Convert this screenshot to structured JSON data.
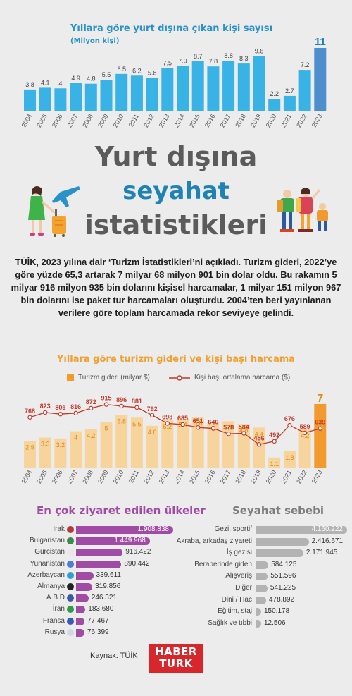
{
  "chart_data": [
    {
      "type": "bar",
      "title": "Yıllara göre yurt dışına çıkan kişi sayısı",
      "subtitle": "(Milyon kişi)",
      "categories": [
        "2004",
        "2005",
        "2006",
        "2007",
        "2008",
        "2009",
        "2010",
        "2011",
        "2012",
        "2013",
        "2014",
        "2015",
        "2016",
        "2017",
        "2018",
        "2019",
        "2020",
        "2021",
        "2022",
        "2023"
      ],
      "values": [
        3.8,
        4.1,
        4,
        4.9,
        4.8,
        5.5,
        6.5,
        6.2,
        5.8,
        7.5,
        7.9,
        8.7,
        7.8,
        8.8,
        8.3,
        9.6,
        2.2,
        2.7,
        7.2,
        11
      ],
      "value_labels": [
        "3.8",
        "4.1",
        "4",
        "4.9",
        "4.8",
        "5.5",
        "6.5",
        "6.2",
        "5.8",
        "7.5",
        "7.9",
        "8.7",
        "7.8",
        "8.8",
        "8.3",
        "9.6",
        "2.2",
        "2.7",
        "7.2",
        "11"
      ],
      "ylim": [
        0,
        11
      ],
      "colors": {
        "bar": "#39b3e6",
        "highlight": "#4c8fcc",
        "label": "#444444",
        "highlight_label": "#1e82b4"
      }
    },
    {
      "type": "bar",
      "title": "Yıllara göre turizm gideri ve kişi başı harcama",
      "categories": [
        "2004",
        "2005",
        "2006",
        "2007",
        "2008",
        "2009",
        "2010",
        "2011",
        "2012",
        "2013",
        "2014",
        "2015",
        "2016",
        "2017",
        "2018",
        "2019",
        "2020",
        "2021",
        "2022",
        "2023"
      ],
      "series": [
        {
          "name": "Turizm gideri (milyar $)",
          "type": "bar",
          "values": [
            2.9,
            3.3,
            3.2,
            4,
            4.2,
            5,
            5.8,
            5.5,
            4.6,
            5.2,
            5.4,
            5.6,
            5,
            5.1,
            4.8,
            4.4,
            1.1,
            1.8,
            4.2,
            7
          ],
          "labels": [
            "2.9",
            "3.3",
            "3.2",
            "4",
            "4.2",
            "5",
            "5.8",
            "5.5",
            "4.6",
            "5.2",
            "5.4",
            "5.6",
            "5",
            "5.1",
            "4.8",
            "4.4",
            "1.1",
            "1.8",
            "4.2",
            "7"
          ]
        },
        {
          "name": "Kişi başı ortalama harcama ($)",
          "type": "line",
          "values": [
            768,
            823,
            805,
            816,
            872,
            915,
            896,
            881,
            792,
            698,
            685,
            651,
            640,
            578,
            584,
            456,
            492,
            676,
            589,
            639
          ],
          "labels": [
            "768",
            "823",
            "805",
            "816",
            "872",
            "915",
            "896",
            "881",
            "792",
            "698",
            "685",
            "651",
            "640",
            "578",
            "584",
            "456",
            "492",
            "676",
            "589",
            "639"
          ]
        }
      ],
      "colors": {
        "bar": "#f7d49b",
        "highlight": "#f29a2e",
        "line": "#c0392b",
        "bar_label": "#e08a1e"
      }
    },
    {
      "type": "bar",
      "orientation": "horizontal",
      "title": "En çok ziyaret edilen ülkeler",
      "categories": [
        "Irak",
        "Bulgaristan",
        "Gürcistan",
        "Yunanistan",
        "Azerbaycan",
        "Almanya",
        "A.B.D",
        "İran",
        "Fransa",
        "Rusya"
      ],
      "values": [
        1908838,
        1449968,
        916422,
        890442,
        339611,
        319856,
        246321,
        183680,
        77467,
        76399
      ],
      "labels": [
        "1.908.838",
        "1.449.968",
        "916.422",
        "890.442",
        "339.611",
        "319.856",
        "246.321",
        "183.680",
        "77.467",
        "76.399"
      ],
      "colors": {
        "bar": "#a04ba4"
      }
    },
    {
      "type": "bar",
      "orientation": "horizontal",
      "title": "Seyahat sebebi",
      "categories": [
        "Gezi, sportif",
        "Akraba, arkadaş ziyareti",
        "İş gezisi",
        "Beraberinde giden",
        "Alışveriş",
        "Diğer",
        "Dini / Hac",
        "Eğitim, staj",
        "Sağlık ve tıbbi"
      ],
      "values": [
        4160222,
        2416671,
        2171945,
        584125,
        551596,
        541225,
        478892,
        150178,
        12506
      ],
      "labels": [
        "4.160.222",
        "2.416.671",
        "2.171.945",
        "584.125",
        "551.596",
        "541.225",
        "478.892",
        "150.178",
        "12.506"
      ],
      "colors": {
        "bar": "#b3b3b3"
      }
    }
  ],
  "hero": {
    "line1": "Yurt dışına",
    "line2": "seyahat",
    "line3": "istatistikleri"
  },
  "intro": "TÜİK, 2023 yılına dair ‘Turizm İstatistikleri’ni açıkladı. Turizm gideri, 2022’ye göre yüzde 65,3 artarak 7 milyar 68 milyon 901 bin dolar oldu. Bu rakamın 5 milyar 916 milyon 935 bin dolarını kişisel harcamalar, 1 milyar 151 milyon 967 bin dolarını ise paket tur harcamaları oluşturdu. 2004’ten beri yayınlanan verilere göre toplam harcamada rekor seviyeye gelindi.",
  "footer": {
    "source": "Kaynak: TÜİK",
    "logo_line1": "HABER",
    "logo_line2": "TURK"
  }
}
